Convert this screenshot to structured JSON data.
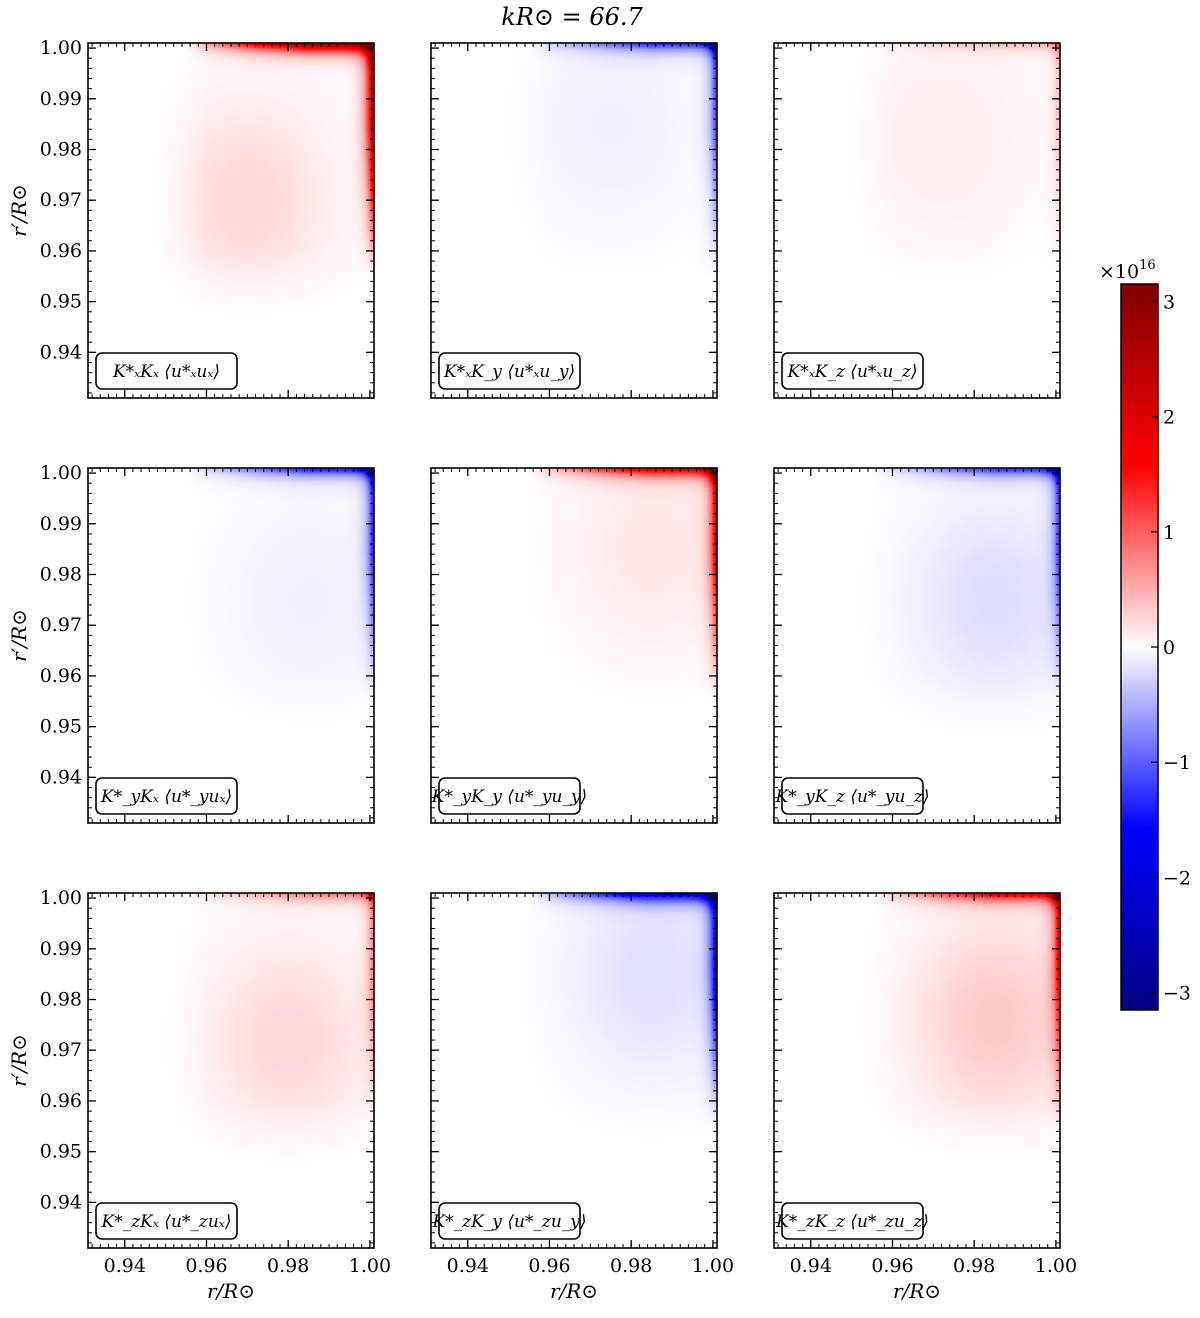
{
  "chart_data": {
    "type": "heatmap",
    "title": "kR⊙ = 66.7",
    "layout": {
      "rows": 3,
      "cols": 3
    },
    "xlabel": "r/R⊙",
    "ylabel": "r′/R⊙",
    "xlim": [
      0.931,
      1.001
    ],
    "ylim": [
      0.931,
      1.001
    ],
    "xticks": [
      0.94,
      0.96,
      0.98,
      1.0
    ],
    "xtick_labels": [
      "0.94",
      "0.96",
      "0.98",
      "1.00"
    ],
    "yticks": [
      0.94,
      0.95,
      0.96,
      0.97,
      0.98,
      0.99,
      1.0
    ],
    "ytick_labels": [
      "0.94",
      "0.95",
      "0.96",
      "0.97",
      "0.98",
      "0.99",
      "1.00"
    ],
    "colorbar": {
      "colormap": "seismic",
      "range": [
        -3.15,
        3.15
      ],
      "scale_label": "×10",
      "scale_exponent": "16",
      "ticks": [
        -3,
        -2,
        -1,
        0,
        1,
        2,
        3
      ],
      "tick_labels": [
        "−3",
        "−2",
        "−1",
        "0",
        "1",
        "2",
        "3"
      ]
    },
    "panels": [
      {
        "label": "K*ₓKₓ ⟨u*ₓuₓ⟩",
        "edge": 3.1,
        "body": 0.25,
        "peak_r": 0.97,
        "peak_rp": 0.97
      },
      {
        "label": "K*ₓK_y ⟨u*ₓu_y⟩",
        "edge": -1.3,
        "body": -0.1,
        "peak_r": 0.975,
        "peak_rp": 0.985
      },
      {
        "label": "K*ₓK_z ⟨u*ₓu_z⟩",
        "edge": 0.4,
        "body": 0.12,
        "peak_r": 0.972,
        "peak_rp": 0.982
      },
      {
        "label": "K*_yKₓ ⟨u*_yuₓ⟩",
        "edge": -1.5,
        "body": -0.1,
        "peak_r": 0.985,
        "peak_rp": 0.975
      },
      {
        "label": "K*_yK_y ⟨u*_yu_y⟩",
        "edge": 2.1,
        "body": 0.15,
        "peak_r": 0.985,
        "peak_rp": 0.985
      },
      {
        "label": "K*_yK_z ⟨u*_yu_z⟩",
        "edge": -1.3,
        "body": -0.22,
        "peak_r": 0.985,
        "peak_rp": 0.975
      },
      {
        "label": "K*_zKₓ ⟨u*_zuₓ⟩",
        "edge": 0.8,
        "body": 0.25,
        "peak_r": 0.98,
        "peak_rp": 0.972
      },
      {
        "label": "K*_zK_y ⟨u*_zu_y⟩",
        "edge": -2.2,
        "body": -0.2,
        "peak_r": 0.985,
        "peak_rp": 0.985
      },
      {
        "label": "K*_zK_z ⟨u*_zu_z⟩",
        "edge": 1.8,
        "body": 0.35,
        "peak_r": 0.985,
        "peak_rp": 0.976
      }
    ]
  }
}
